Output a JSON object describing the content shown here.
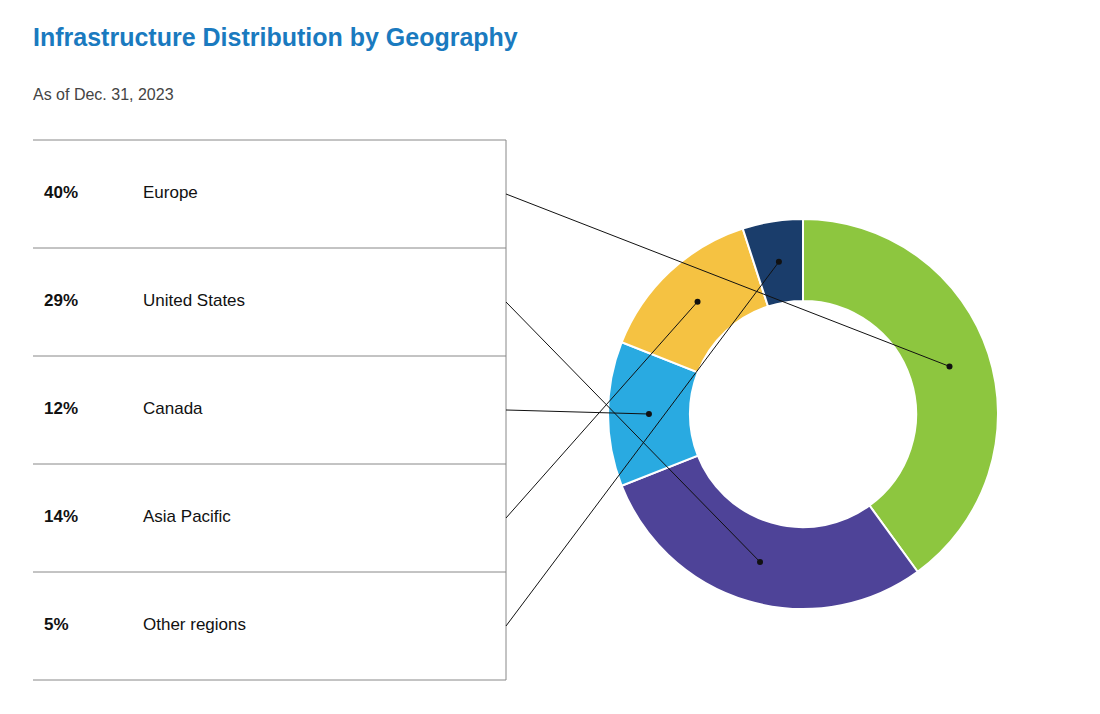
{
  "chart_data": {
    "type": "pie",
    "title": "Infrastructure Distribution by Geography",
    "subtitle": "As of Dec. 31, 2023",
    "categories": [
      "Europe",
      "United States",
      "Canada",
      "Asia Pacific",
      "Other regions"
    ],
    "values": [
      40,
      29,
      12,
      14,
      5
    ],
    "value_labels": [
      "40%",
      "29%",
      "12%",
      "14%",
      "5%"
    ],
    "colors": [
      "#8dc63f",
      "#4e4398",
      "#29aae1",
      "#f5c242",
      "#1a3d6b"
    ],
    "legend": "left"
  }
}
